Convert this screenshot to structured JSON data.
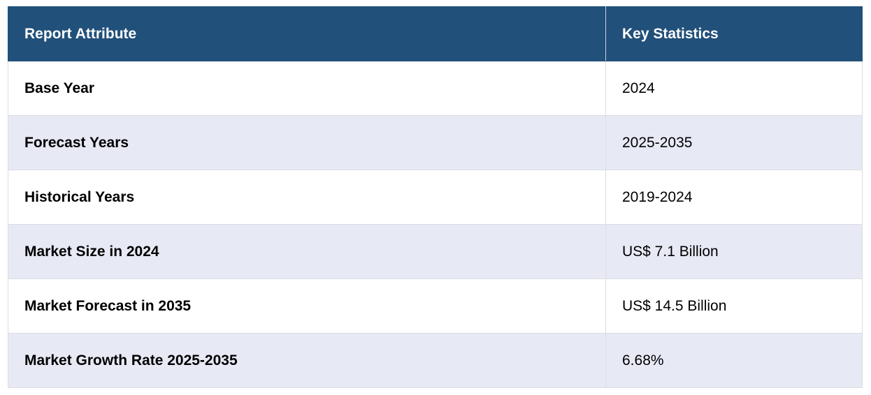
{
  "table": {
    "headers": [
      "Report Attribute",
      "Key Statistics"
    ],
    "rows": [
      {
        "attribute": "Base Year",
        "value": "2024"
      },
      {
        "attribute": "Forecast Years",
        "value": "2025-2035"
      },
      {
        "attribute": "Historical Years",
        "value": "2019-2024"
      },
      {
        "attribute": "Market Size in 2024",
        "value": "US$ 7.1 Billion"
      },
      {
        "attribute": "Market Forecast in 2035",
        "value": "US$ 14.5 Billion"
      },
      {
        "attribute": "Market Growth Rate 2025-2035",
        "value": "6.68%"
      }
    ]
  },
  "colors": {
    "header_bg": "#21507a",
    "header_text": "#ffffff",
    "row_alt_bg": "#e7e9f5",
    "row_bg": "#ffffff"
  }
}
